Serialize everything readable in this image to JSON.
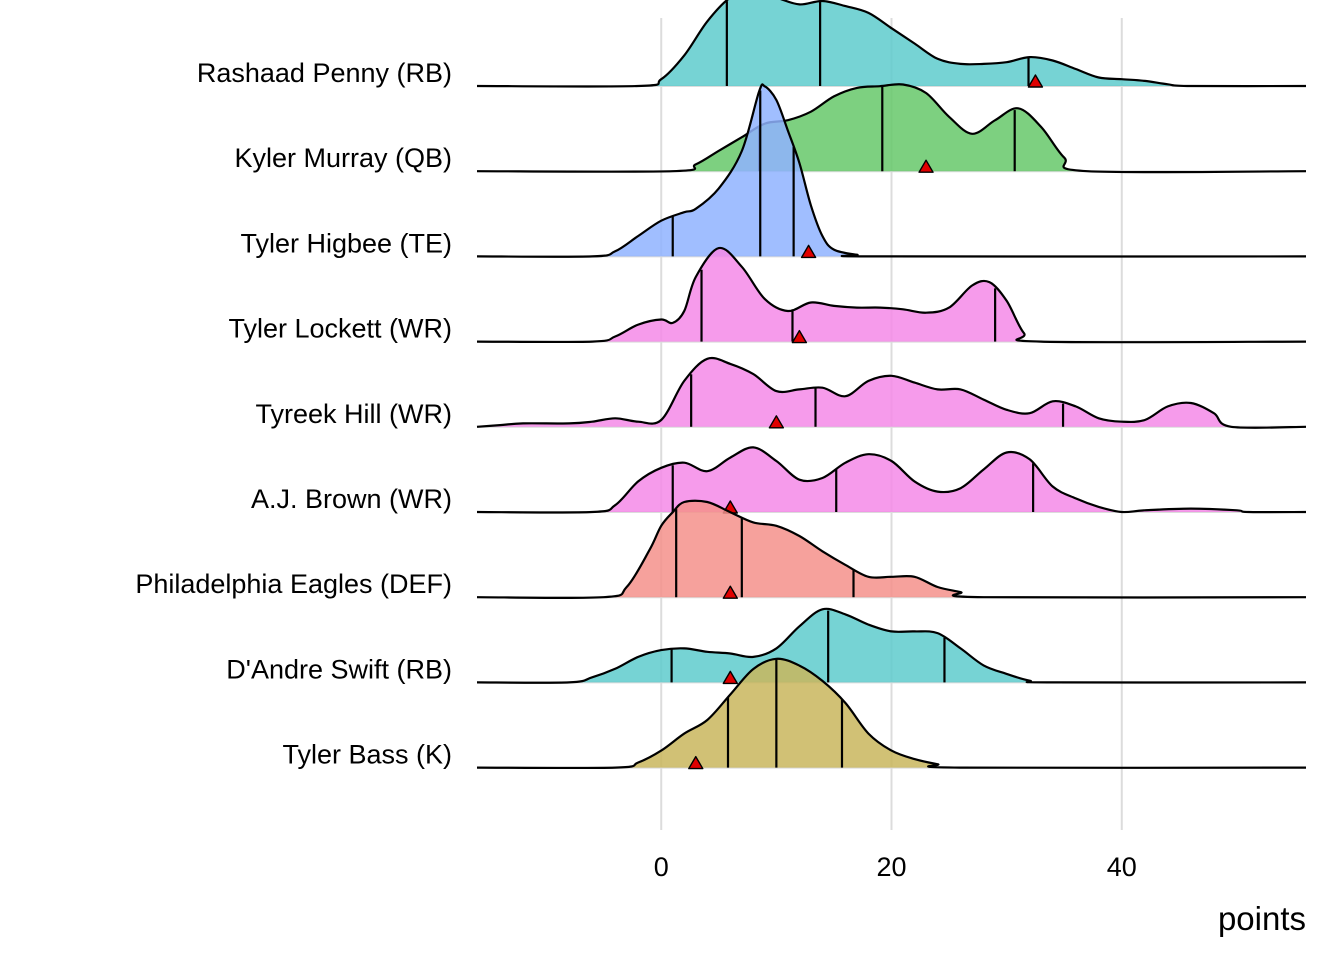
{
  "chart_data": {
    "type": "ridgeline",
    "title": "",
    "xlabel": "points",
    "ylabel": "",
    "xlim": [
      -16,
      56
    ],
    "x_ticks": [
      0,
      20,
      40
    ],
    "x_tick_labels": [
      "0",
      "20",
      "40"
    ],
    "grid": "vertical major gridlines",
    "legend": "none",
    "marker": "red triangle",
    "marker_color": "#e00000",
    "series": [
      {
        "name": "Rashaad Penny (RB)",
        "color": "#5ecbcd",
        "quantiles": [
          5.7,
          13.8,
          31.9
        ],
        "marker_value": 32.5,
        "density": [
          [
            -16,
            0
          ],
          [
            -2,
            0
          ],
          [
            0,
            0.04
          ],
          [
            2,
            0.18
          ],
          [
            4,
            0.38
          ],
          [
            6,
            0.52
          ],
          [
            8,
            0.56
          ],
          [
            10,
            0.52
          ],
          [
            12,
            0.48
          ],
          [
            14,
            0.5
          ],
          [
            16,
            0.47
          ],
          [
            18,
            0.43
          ],
          [
            20,
            0.34
          ],
          [
            22,
            0.25
          ],
          [
            24,
            0.16
          ],
          [
            26,
            0.13
          ],
          [
            28,
            0.13
          ],
          [
            30,
            0.14
          ],
          [
            32,
            0.17
          ],
          [
            34,
            0.15
          ],
          [
            36,
            0.1
          ],
          [
            38,
            0.05
          ],
          [
            40,
            0.04
          ],
          [
            42,
            0.03
          ],
          [
            44,
            0.01
          ],
          [
            46,
            0
          ],
          [
            56,
            0
          ]
        ]
      },
      {
        "name": "Kyler Murray (QB)",
        "color": "#66c86a",
        "quantiles": [
          8.5,
          19.2,
          30.7
        ],
        "marker_value": 23,
        "density": [
          [
            -16,
            0
          ],
          [
            1,
            0
          ],
          [
            3,
            0.04
          ],
          [
            5,
            0.12
          ],
          [
            7,
            0.2
          ],
          [
            9,
            0.28
          ],
          [
            11,
            0.3
          ],
          [
            13,
            0.35
          ],
          [
            15,
            0.44
          ],
          [
            17,
            0.49
          ],
          [
            19,
            0.5
          ],
          [
            21,
            0.51
          ],
          [
            23,
            0.46
          ],
          [
            25,
            0.32
          ],
          [
            27,
            0.22
          ],
          [
            29,
            0.3
          ],
          [
            31,
            0.37
          ],
          [
            33,
            0.26
          ],
          [
            35,
            0.08
          ],
          [
            37,
            0
          ],
          [
            56,
            0
          ]
        ]
      },
      {
        "name": "Tyler Higbee (TE)",
        "color": "#8fb3ff",
        "quantiles": [
          1.0,
          8.6,
          11.5
        ],
        "marker_value": 12.8,
        "density": [
          [
            -16,
            0
          ],
          [
            -6,
            0
          ],
          [
            -4,
            0.03
          ],
          [
            -2,
            0.12
          ],
          [
            0,
            0.21
          ],
          [
            2,
            0.26
          ],
          [
            3,
            0.28
          ],
          [
            5,
            0.4
          ],
          [
            7,
            0.62
          ],
          [
            8.5,
            0.97
          ],
          [
            9,
            1.0
          ],
          [
            10,
            0.92
          ],
          [
            11,
            0.74
          ],
          [
            12,
            0.55
          ],
          [
            13,
            0.3
          ],
          [
            14,
            0.12
          ],
          [
            15,
            0.04
          ],
          [
            17,
            0.01
          ],
          [
            19,
            0
          ],
          [
            56,
            0
          ]
        ]
      },
      {
        "name": "Tyler Lockett (WR)",
        "color": "#f589e8",
        "quantiles": [
          3.5,
          11.4,
          29.0
        ],
        "marker_value": 12,
        "density": [
          [
            -16,
            0
          ],
          [
            -6,
            0
          ],
          [
            -4,
            0.03
          ],
          [
            -2,
            0.1
          ],
          [
            0,
            0.13
          ],
          [
            1,
            0.11
          ],
          [
            2,
            0.18
          ],
          [
            3,
            0.38
          ],
          [
            5,
            0.55
          ],
          [
            7,
            0.44
          ],
          [
            9,
            0.25
          ],
          [
            11,
            0.18
          ],
          [
            13,
            0.23
          ],
          [
            15,
            0.21
          ],
          [
            17,
            0.2
          ],
          [
            19,
            0.2
          ],
          [
            21,
            0.19
          ],
          [
            23,
            0.17
          ],
          [
            25,
            0.2
          ],
          [
            27,
            0.33
          ],
          [
            28.5,
            0.35
          ],
          [
            30,
            0.24
          ],
          [
            31.5,
            0.05
          ],
          [
            33,
            0
          ],
          [
            56,
            0
          ]
        ]
      },
      {
        "name": "Tyreek Hill (WR)",
        "color": "#f589e8",
        "quantiles": [
          2.6,
          13.4,
          34.9
        ],
        "marker_value": 10,
        "density": [
          [
            -16,
            0
          ],
          [
            -14,
            0.01
          ],
          [
            -12,
            0.02
          ],
          [
            -8,
            0.02
          ],
          [
            -6,
            0.03
          ],
          [
            -4,
            0.05
          ],
          [
            -2,
            0.03
          ],
          [
            0,
            0.04
          ],
          [
            2,
            0.27
          ],
          [
            4,
            0.4
          ],
          [
            6,
            0.37
          ],
          [
            8,
            0.31
          ],
          [
            10,
            0.21
          ],
          [
            12,
            0.22
          ],
          [
            14,
            0.23
          ],
          [
            16,
            0.18
          ],
          [
            18,
            0.27
          ],
          [
            20,
            0.3
          ],
          [
            22,
            0.26
          ],
          [
            24,
            0.22
          ],
          [
            26,
            0.22
          ],
          [
            28,
            0.16
          ],
          [
            30,
            0.1
          ],
          [
            32,
            0.08
          ],
          [
            34,
            0.15
          ],
          [
            36,
            0.12
          ],
          [
            38,
            0.05
          ],
          [
            40,
            0.03
          ],
          [
            42,
            0.04
          ],
          [
            44,
            0.12
          ],
          [
            46,
            0.14
          ],
          [
            48,
            0.08
          ],
          [
            49.5,
            0
          ],
          [
            56,
            0
          ]
        ]
      },
      {
        "name": "A.J. Brown (WR)",
        "color": "#f589e8",
        "quantiles": [
          1.0,
          15.2,
          32.3
        ],
        "marker_value": 6,
        "density": [
          [
            -16,
            0
          ],
          [
            -6,
            0
          ],
          [
            -4,
            0.04
          ],
          [
            -2,
            0.18
          ],
          [
            0,
            0.26
          ],
          [
            2,
            0.29
          ],
          [
            4,
            0.24
          ],
          [
            6,
            0.32
          ],
          [
            8,
            0.38
          ],
          [
            10,
            0.3
          ],
          [
            12,
            0.19
          ],
          [
            14,
            0.2
          ],
          [
            16,
            0.29
          ],
          [
            18,
            0.34
          ],
          [
            20,
            0.3
          ],
          [
            22,
            0.18
          ],
          [
            24,
            0.12
          ],
          [
            26,
            0.14
          ],
          [
            28,
            0.25
          ],
          [
            30,
            0.35
          ],
          [
            32,
            0.31
          ],
          [
            34,
            0.15
          ],
          [
            36,
            0.08
          ],
          [
            38,
            0.03
          ],
          [
            40,
            0
          ],
          [
            42,
            0.01
          ],
          [
            46,
            0.02
          ],
          [
            50,
            0.01
          ],
          [
            51,
            0
          ],
          [
            56,
            0
          ]
        ]
      },
      {
        "name": "Philadelphia Eagles (DEF)",
        "color": "#f4918b",
        "quantiles": [
          1.3,
          7.0,
          16.7
        ],
        "marker_value": 6,
        "density": [
          [
            -16,
            0
          ],
          [
            -5,
            0
          ],
          [
            -3,
            0.06
          ],
          [
            -1,
            0.28
          ],
          [
            0,
            0.42
          ],
          [
            1,
            0.5
          ],
          [
            2,
            0.56
          ],
          [
            4,
            0.56
          ],
          [
            6,
            0.5
          ],
          [
            8,
            0.44
          ],
          [
            10,
            0.42
          ],
          [
            12,
            0.36
          ],
          [
            14,
            0.27
          ],
          [
            16,
            0.19
          ],
          [
            18,
            0.12
          ],
          [
            20,
            0.12
          ],
          [
            22,
            0.12
          ],
          [
            24,
            0.06
          ],
          [
            26,
            0.03
          ],
          [
            28,
            0
          ],
          [
            56,
            0
          ]
        ]
      },
      {
        "name": "D'Andre Swift (RB)",
        "color": "#5ecbcd",
        "quantiles": [
          0.9,
          14.5,
          24.6
        ],
        "marker_value": 6,
        "density": [
          [
            -16,
            0
          ],
          [
            -8,
            0
          ],
          [
            -6,
            0.03
          ],
          [
            -4,
            0.08
          ],
          [
            -2,
            0.15
          ],
          [
            0,
            0.19
          ],
          [
            2,
            0.2
          ],
          [
            4,
            0.18
          ],
          [
            6,
            0.17
          ],
          [
            8,
            0.15
          ],
          [
            10,
            0.2
          ],
          [
            12,
            0.33
          ],
          [
            14,
            0.43
          ],
          [
            16,
            0.4
          ],
          [
            18,
            0.34
          ],
          [
            20,
            0.3
          ],
          [
            22,
            0.3
          ],
          [
            24,
            0.29
          ],
          [
            26,
            0.2
          ],
          [
            28,
            0.1
          ],
          [
            30,
            0.05
          ],
          [
            32,
            0.01
          ],
          [
            34,
            0
          ],
          [
            56,
            0
          ]
        ]
      },
      {
        "name": "Tyler Bass (K)",
        "color": "#c9b65d",
        "quantiles": [
          5.8,
          10.0,
          15.7
        ],
        "marker_value": 3,
        "density": [
          [
            -16,
            0
          ],
          [
            -4,
            0
          ],
          [
            -2,
            0.03
          ],
          [
            0,
            0.1
          ],
          [
            2,
            0.2
          ],
          [
            4,
            0.28
          ],
          [
            6,
            0.43
          ],
          [
            8,
            0.58
          ],
          [
            10,
            0.64
          ],
          [
            12,
            0.6
          ],
          [
            14,
            0.51
          ],
          [
            16,
            0.38
          ],
          [
            18,
            0.2
          ],
          [
            20,
            0.1
          ],
          [
            22,
            0.05
          ],
          [
            24,
            0.02
          ],
          [
            26,
            0
          ],
          [
            56,
            0
          ]
        ]
      }
    ]
  }
}
